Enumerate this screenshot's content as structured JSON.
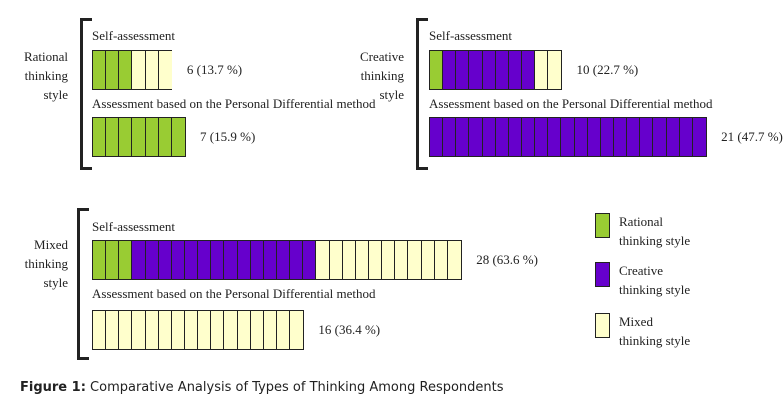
{
  "chart_data": {
    "type": "unit-bar",
    "colors": {
      "rational": "#99cc33",
      "creative": "#6600cc",
      "mixed": "#ffffcc"
    },
    "groups": [
      {
        "label": "Rational thinking style",
        "rows": [
          {
            "label": "Self-assessment",
            "value_label": "6 (13.7 %)",
            "segments": [
              {
                "style": "rational",
                "count": 3
              },
              {
                "style": "mixed",
                "count": 3
              }
            ]
          },
          {
            "label": "Assessment based on the Personal Differential method",
            "value_label": "7 (15.9 %)",
            "segments": [
              {
                "style": "rational",
                "count": 7
              }
            ]
          }
        ]
      },
      {
        "label": "Creative thinking style",
        "rows": [
          {
            "label": "Self-assessment",
            "value_label": "10 (22.7 %)",
            "segments": [
              {
                "style": "rational",
                "count": 1
              },
              {
                "style": "creative",
                "count": 7
              },
              {
                "style": "mixed",
                "count": 2
              }
            ]
          },
          {
            "label": "Assessment based on the Personal Differential method",
            "value_label": "21 (47.7 %)",
            "segments": [
              {
                "style": "creative",
                "count": 21
              }
            ]
          }
        ]
      },
      {
        "label": "Mixed thinking style",
        "rows": [
          {
            "label": "Self-assessment",
            "value_label": "28 (63.6 %)",
            "segments": [
              {
                "style": "rational",
                "count": 3
              },
              {
                "style": "creative",
                "count": 14
              },
              {
                "style": "mixed",
                "count": 11
              }
            ]
          },
          {
            "label": "Assessment based on the Personal Differential method",
            "value_label": "16 (36.4 %)",
            "segments": [
              {
                "style": "mixed",
                "count": 16
              }
            ]
          }
        ]
      }
    ],
    "legend": [
      {
        "style": "rational",
        "label": "Rational thinking style"
      },
      {
        "style": "creative",
        "label": "Creative thinking style"
      },
      {
        "style": "mixed",
        "label": "Mixed thinking style"
      }
    ],
    "legend_position": "right"
  },
  "caption": {
    "prefix": "Figure 1:",
    "text": " Comparative Analysis of Types of Thinking Among Respondents"
  }
}
